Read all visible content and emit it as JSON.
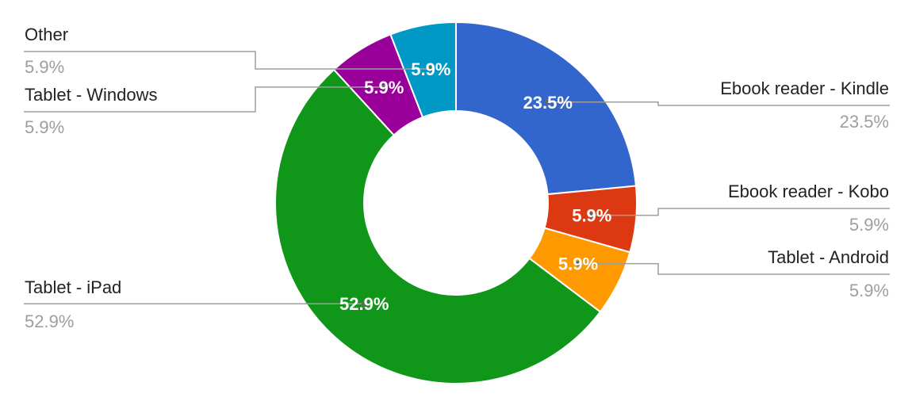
{
  "chart_data": {
    "type": "pie",
    "donut": true,
    "title": "",
    "categories": [
      "Ebook reader - Kindle",
      "Ebook reader - Kobo",
      "Tablet - Android",
      "Tablet - iPad",
      "Tablet - Windows",
      "Other"
    ],
    "values": [
      23.5,
      5.9,
      5.9,
      52.9,
      5.9,
      5.9
    ],
    "value_labels": [
      "23.5%",
      "5.9%",
      "5.9%",
      "52.9%",
      "5.9%",
      "5.9%"
    ],
    "colors": [
      "#3366cc",
      "#dc3912",
      "#ff9900",
      "#109618",
      "#990099",
      "#0099c6"
    ],
    "legend": "labels-outside"
  }
}
